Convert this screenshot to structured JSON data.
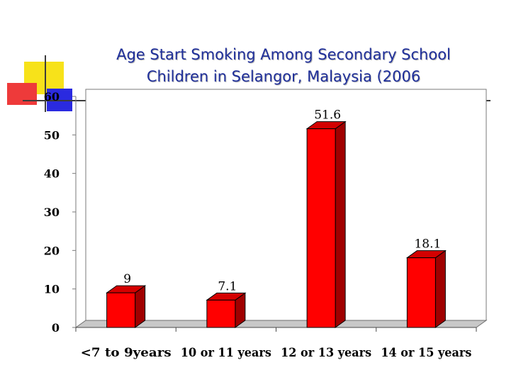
{
  "slide": {
    "title_line1": "Age Start Smoking Among Secondary School",
    "title_line2": "Children in Selangor, Malaysia (2006",
    "accent_colors": {
      "yellow": "#f7e21a",
      "blue": "#2a2ae0",
      "red": "#ee3a3a",
      "title": "#1f2f9a"
    }
  },
  "chart_data": {
    "type": "bar",
    "categories": [
      "<7 to 9years",
      "10 or 11 years",
      "12 or 13 years",
      "14 or 15 years"
    ],
    "values": [
      9,
      7.1,
      51.6,
      18.1
    ],
    "data_labels": [
      "9",
      "7.1",
      "51.6",
      "18.1"
    ],
    "ylim": [
      0,
      60
    ],
    "yticks": [
      "0",
      "10",
      "20",
      "30",
      "40",
      "50",
      "60"
    ],
    "bar_color": "#ff0000",
    "bar_side_color": "#a00000",
    "bar_top_color": "#d40000",
    "three_d": true,
    "grid": false
  }
}
